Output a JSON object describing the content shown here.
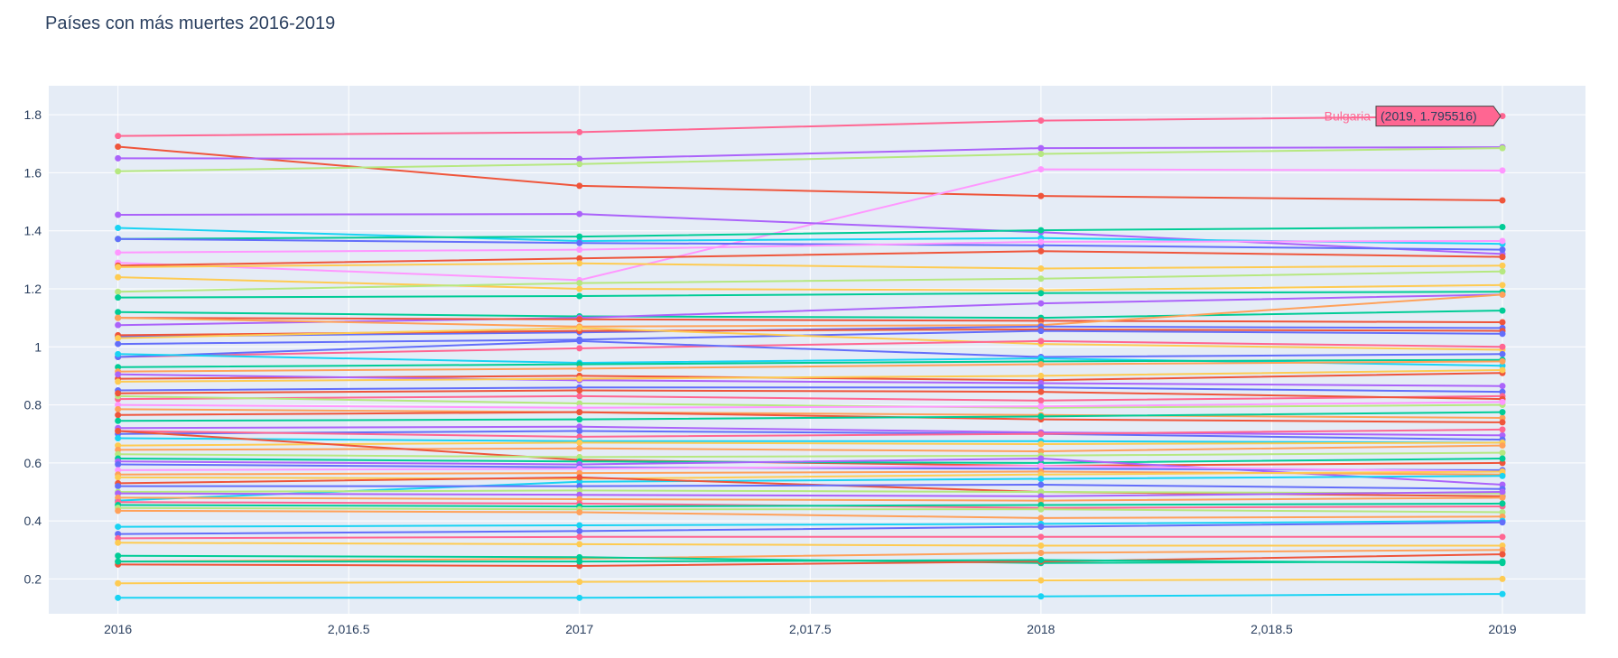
{
  "chart_data": {
    "type": "line",
    "title": "Países con más muertes 2016-2019",
    "xlabel": "",
    "ylabel": "",
    "xlim": [
      2015.85,
      2019.18
    ],
    "ylim": [
      0.08,
      1.9
    ],
    "x": [
      2016,
      2017,
      2018,
      2019
    ],
    "x_tick_values": [
      2016,
      2016.5,
      2017,
      2017.5,
      2018,
      2018.5,
      2019
    ],
    "x_tick_labels": [
      "2016",
      "2,016.5",
      "2017",
      "2,017.5",
      "2018",
      "2,018.5",
      "2019"
    ],
    "y_tick_values": [
      0.2,
      0.4,
      0.6,
      0.8,
      1.0,
      1.2,
      1.4,
      1.6,
      1.8
    ],
    "y_tick_labels": [
      "0.2",
      "0.4",
      "0.6",
      "0.8",
      "1",
      "1.2",
      "1.4",
      "1.6",
      "1.8"
    ],
    "grid": true,
    "legend": "none",
    "background": "#e5ecf6",
    "series": [
      {
        "name": "Bulgaria",
        "color": "#ff6692",
        "values": [
          1.727,
          1.74,
          1.78,
          1.795516
        ]
      },
      {
        "color": "#ef553b",
        "values": [
          1.69,
          1.555,
          1.52,
          1.505
        ]
      },
      {
        "color": "#ab63fa",
        "values": [
          1.65,
          1.648,
          1.685,
          1.688
        ]
      },
      {
        "color": "#b6e880",
        "values": [
          1.605,
          1.63,
          1.665,
          1.685
        ]
      },
      {
        "color": "#ff97ff",
        "values": [
          1.29,
          1.23,
          1.612,
          1.608
        ]
      },
      {
        "color": "#ab63fa",
        "values": [
          1.455,
          1.458,
          1.395,
          1.32
        ]
      },
      {
        "color": "#19d3f3",
        "values": [
          1.41,
          1.365,
          1.375,
          1.355
        ]
      },
      {
        "color": "#00cc96",
        "values": [
          1.372,
          1.38,
          1.402,
          1.413
        ]
      },
      {
        "color": "#636efa",
        "values": [
          1.372,
          1.358,
          1.35,
          1.335
        ]
      },
      {
        "color": "#ff97ff",
        "values": [
          1.325,
          1.335,
          1.362,
          1.365
        ]
      },
      {
        "color": "#ef553b",
        "values": [
          1.28,
          1.305,
          1.33,
          1.31
        ]
      },
      {
        "color": "#fecb52",
        "values": [
          1.275,
          1.288,
          1.27,
          1.28
        ]
      },
      {
        "color": "#fecb52",
        "values": [
          1.24,
          1.2,
          1.195,
          1.213
        ]
      },
      {
        "color": "#b6e880",
        "values": [
          1.19,
          1.22,
          1.235,
          1.26
        ]
      },
      {
        "color": "#00cc96",
        "values": [
          1.17,
          1.175,
          1.185,
          1.19
        ]
      },
      {
        "color": "#00cc96",
        "values": [
          1.12,
          1.105,
          1.1,
          1.125
        ]
      },
      {
        "color": "#ab63fa",
        "values": [
          1.075,
          1.1,
          1.15,
          1.18
        ]
      },
      {
        "color": "#ef553b",
        "values": [
          1.1,
          1.095,
          1.09,
          1.085
        ]
      },
      {
        "color": "#ffa15a",
        "values": [
          1.1,
          1.07,
          1.075,
          1.18
        ]
      },
      {
        "color": "#636efa",
        "values": [
          1.035,
          1.05,
          1.07,
          1.065
        ]
      },
      {
        "color": "#ef553b",
        "values": [
          1.04,
          1.055,
          1.06,
          1.055
        ]
      },
      {
        "color": "#636efa",
        "values": [
          1.01,
          1.025,
          1.055,
          1.045
        ]
      },
      {
        "color": "#fecb52",
        "values": [
          1.03,
          1.065,
          1.01,
          0.99
        ]
      },
      {
        "color": "#ff6692",
        "values": [
          0.965,
          0.995,
          1.02,
          1.0
        ]
      },
      {
        "color": "#636efa",
        "values": [
          0.965,
          1.02,
          0.965,
          0.975
        ]
      },
      {
        "color": "#19d3f3",
        "values": [
          0.975,
          0.945,
          0.96,
          0.935
        ]
      },
      {
        "color": "#00cc96",
        "values": [
          0.93,
          0.94,
          0.95,
          0.955
        ]
      },
      {
        "color": "#ffa15a",
        "values": [
          0.915,
          0.925,
          0.94,
          0.95
        ]
      },
      {
        "color": "#ef553b",
        "values": [
          0.89,
          0.9,
          0.885,
          0.91
        ]
      },
      {
        "color": "#ab63fa",
        "values": [
          0.905,
          0.885,
          0.875,
          0.865
        ]
      },
      {
        "color": "#fecb52",
        "values": [
          0.88,
          0.89,
          0.9,
          0.92
        ]
      },
      {
        "color": "#636efa",
        "values": [
          0.85,
          0.86,
          0.86,
          0.845
        ]
      },
      {
        "color": "#ff6692",
        "values": [
          0.82,
          0.83,
          0.815,
          0.83
        ]
      },
      {
        "color": "#b6e880",
        "values": [
          0.83,
          0.805,
          0.79,
          0.8
        ]
      },
      {
        "color": "#ef553b",
        "values": [
          0.84,
          0.85,
          0.845,
          0.82
        ]
      },
      {
        "color": "#ff97ff",
        "values": [
          0.8,
          0.79,
          0.795,
          0.81
        ]
      },
      {
        "color": "#ffa15a",
        "values": [
          0.785,
          0.775,
          0.765,
          0.755
        ]
      },
      {
        "color": "#ef553b",
        "values": [
          0.765,
          0.775,
          0.75,
          0.74
        ]
      },
      {
        "color": "#00cc96",
        "values": [
          0.745,
          0.75,
          0.76,
          0.775
        ]
      },
      {
        "color": "#ab63fa",
        "values": [
          0.72,
          0.725,
          0.705,
          0.695
        ]
      },
      {
        "color": "#636efa",
        "values": [
          0.7,
          0.71,
          0.7,
          0.68
        ]
      },
      {
        "color": "#ff6692",
        "values": [
          0.71,
          0.69,
          0.7,
          0.715
        ]
      },
      {
        "color": "#19d3f3",
        "values": [
          0.685,
          0.675,
          0.675,
          0.67
        ]
      },
      {
        "color": "#fecb52",
        "values": [
          0.66,
          0.67,
          0.665,
          0.67
        ]
      },
      {
        "color": "#ffa15a",
        "values": [
          0.645,
          0.65,
          0.64,
          0.66
        ]
      },
      {
        "color": "#ef553b",
        "values": [
          0.71,
          0.61,
          0.59,
          0.6
        ]
      },
      {
        "color": "#b6e880",
        "values": [
          0.63,
          0.62,
          0.625,
          0.635
        ]
      },
      {
        "color": "#00cc96",
        "values": [
          0.615,
          0.605,
          0.6,
          0.615
        ]
      },
      {
        "color": "#ab63fa",
        "values": [
          0.605,
          0.595,
          0.615,
          0.525
        ]
      },
      {
        "color": "#636efa",
        "values": [
          0.595,
          0.585,
          0.58,
          0.575
        ]
      },
      {
        "color": "#ff97ff",
        "values": [
          0.575,
          0.58,
          0.59,
          0.57
        ]
      },
      {
        "color": "#ffa15a",
        "values": [
          0.56,
          0.565,
          0.57,
          0.56
        ]
      },
      {
        "color": "#fecb52",
        "values": [
          0.55,
          0.545,
          0.56,
          0.57
        ]
      },
      {
        "color": "#19d3f3",
        "values": [
          0.47,
          0.535,
          0.545,
          0.555
        ]
      },
      {
        "color": "#ef553b",
        "values": [
          0.53,
          0.55,
          0.5,
          0.485
        ]
      },
      {
        "color": "#636efa",
        "values": [
          0.52,
          0.52,
          0.525,
          0.51
        ]
      },
      {
        "color": "#b6e880",
        "values": [
          0.5,
          0.505,
          0.5,
          0.495
        ]
      },
      {
        "color": "#ab63fa",
        "values": [
          0.495,
          0.49,
          0.485,
          0.5
        ]
      },
      {
        "color": "#ffa15a",
        "values": [
          0.48,
          0.475,
          0.47,
          0.48
        ]
      },
      {
        "color": "#ff6692",
        "values": [
          0.465,
          0.46,
          0.445,
          0.45
        ]
      },
      {
        "color": "#00cc96",
        "values": [
          0.455,
          0.45,
          0.455,
          0.46
        ]
      },
      {
        "color": "#b6e880",
        "values": [
          0.445,
          0.44,
          0.44,
          0.43
        ]
      },
      {
        "color": "#ffa15a",
        "values": [
          0.435,
          0.43,
          0.41,
          0.415
        ]
      },
      {
        "color": "#19d3f3",
        "values": [
          0.38,
          0.385,
          0.39,
          0.4
        ]
      },
      {
        "color": "#636efa",
        "values": [
          0.355,
          0.365,
          0.38,
          0.395
        ]
      },
      {
        "color": "#ff6692",
        "values": [
          0.34,
          0.345,
          0.345,
          0.345
        ]
      },
      {
        "color": "#fecb52",
        "values": [
          0.325,
          0.32,
          0.315,
          0.315
        ]
      },
      {
        "color": "#ffa15a",
        "values": [
          0.26,
          0.27,
          0.29,
          0.3
        ]
      },
      {
        "color": "#00cc96",
        "values": [
          0.28,
          0.275,
          0.255,
          0.26
        ]
      },
      {
        "color": "#ef553b",
        "values": [
          0.25,
          0.245,
          0.26,
          0.285
        ]
      },
      {
        "color": "#00cc96",
        "values": [
          0.26,
          0.26,
          0.265,
          0.255
        ]
      },
      {
        "color": "#fecb52",
        "values": [
          0.185,
          0.19,
          0.195,
          0.2
        ]
      },
      {
        "color": "#19d3f3",
        "values": [
          0.135,
          0.135,
          0.14,
          0.148
        ]
      }
    ],
    "hover": {
      "series_name": "Bulgaria",
      "label": "(2019, 1.795516)",
      "x": 2019,
      "y": 1.795516,
      "color": "#ff6692"
    }
  }
}
